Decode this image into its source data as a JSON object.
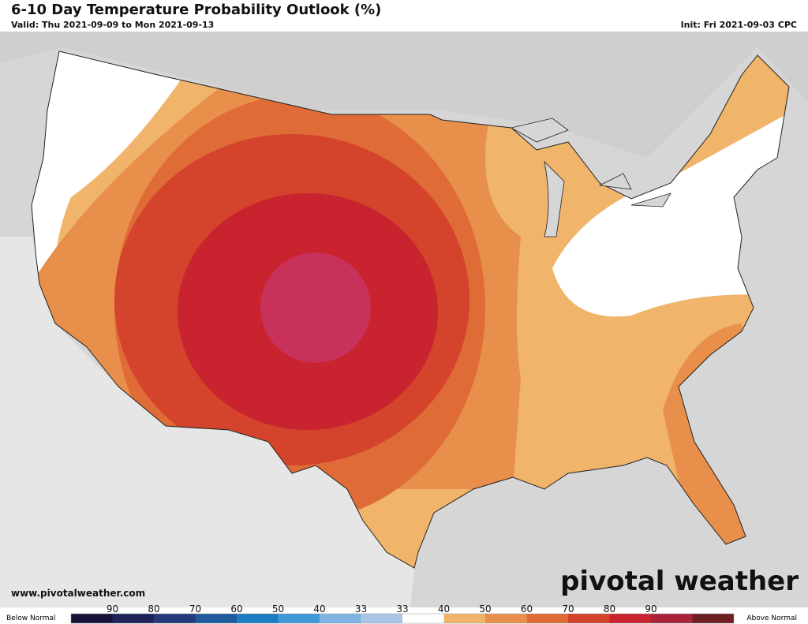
{
  "header": {
    "title": "6-10 Day Temperature Probability Outlook (%)",
    "valid": "Valid: Thu 2021-09-09 to Mon 2021-09-13",
    "init": "Init: Fri 2021-09-03 CPC"
  },
  "footer": {
    "website": "www.pivotalweather.com",
    "brand": "pivotal weather"
  },
  "legend": {
    "below": "Below Normal",
    "above": "Above Normal",
    "labels": [
      90,
      80,
      70,
      60,
      50,
      40,
      33,
      33,
      40,
      50,
      60,
      70,
      80,
      90
    ],
    "colors": [
      "#1a1238",
      "#1f2358",
      "#26397a",
      "#1e5a9c",
      "#1c7cc2",
      "#3f98d8",
      "#7db4e2",
      "#a9c6e6",
      "#ffffff",
      "#f0b46a",
      "#e88f4b",
      "#df6b37",
      "#d4432b",
      "#c8232e",
      "#a8233a",
      "#6e1f24"
    ]
  }
}
